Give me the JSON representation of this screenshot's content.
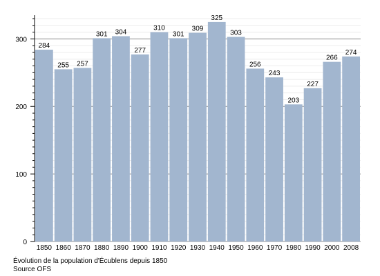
{
  "chart_data": {
    "type": "bar",
    "categories": [
      "1850",
      "1860",
      "1870",
      "1880",
      "1890",
      "1900",
      "1910",
      "1920",
      "1930",
      "1940",
      "1950",
      "1960",
      "1970",
      "1980",
      "1990",
      "2000",
      "2008"
    ],
    "values": [
      284,
      255,
      257,
      301,
      304,
      277,
      310,
      301,
      309,
      325,
      303,
      256,
      243,
      203,
      227,
      266,
      274
    ],
    "ylim": [
      0,
      330
    ],
    "yticks": [
      0,
      100,
      200,
      300
    ],
    "bar_color": "#a2b6cf",
    "grid": true,
    "title": "",
    "xlabel": "",
    "ylabel": ""
  },
  "caption": {
    "line1": "Évolution de la population d'Écublens depuis 1850",
    "line2": "Source OFS"
  }
}
